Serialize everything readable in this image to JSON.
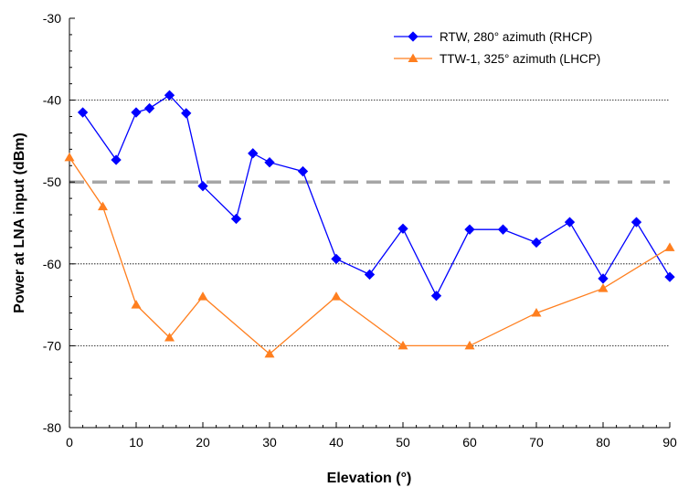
{
  "chart_data": {
    "type": "line",
    "xlabel": "Elevation (°)",
    "ylabel": "Power at LNA input (dBm)",
    "xlim": [
      0,
      90
    ],
    "ylim": [
      -80,
      -30
    ],
    "x_ticks": [
      "0",
      "10",
      "20",
      "30",
      "40",
      "50",
      "60",
      "70",
      "80",
      "90"
    ],
    "y_ticks": [
      "-30",
      "-40",
      "-50",
      "-60",
      "-70",
      "-80"
    ],
    "gridlines_y": [
      -40,
      -60,
      -70
    ],
    "threshold": {
      "y": -50,
      "color": "#a6a6a6",
      "style": "dashed"
    },
    "legend_position": "top-right",
    "series": [
      {
        "name": "RTW, 280° azimuth (RHCP)",
        "color": "#0000ff",
        "marker": "diamond",
        "points": [
          [
            2,
            -41.5
          ],
          [
            7,
            -47.3
          ],
          [
            10,
            -41.5
          ],
          [
            12,
            -41.0
          ],
          [
            15,
            -39.4
          ],
          [
            17.5,
            -41.6
          ],
          [
            20,
            -50.5
          ],
          [
            25,
            -54.5
          ],
          [
            27.5,
            -46.5
          ],
          [
            30,
            -47.6
          ],
          [
            35,
            -48.7
          ],
          [
            40,
            -59.4
          ],
          [
            45,
            -61.3
          ],
          [
            50,
            -55.7
          ],
          [
            55,
            -63.9
          ],
          [
            60,
            -55.8
          ],
          [
            65,
            -55.8
          ],
          [
            70,
            -57.4
          ],
          [
            75,
            -54.9
          ],
          [
            80,
            -61.8
          ],
          [
            85,
            -54.9
          ],
          [
            90,
            -61.6
          ]
        ]
      },
      {
        "name": "TTW-1, 325° azimuth (LHCP)",
        "color": "#ff7f1f",
        "marker": "triangle",
        "points": [
          [
            0,
            -47.0
          ],
          [
            5,
            -53.0
          ],
          [
            10,
            -65.0
          ],
          [
            15,
            -69.0
          ],
          [
            20,
            -64.0
          ],
          [
            30,
            -71.0
          ],
          [
            40,
            -64.0
          ],
          [
            50,
            -70.0
          ],
          [
            60,
            -70.0
          ],
          [
            70,
            -66.0
          ],
          [
            80,
            -63.0
          ],
          [
            90,
            -58.0
          ]
        ]
      }
    ]
  }
}
